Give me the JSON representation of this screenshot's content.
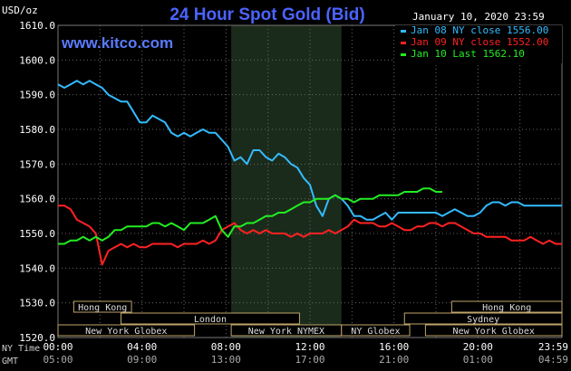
{
  "header": {
    "title": "24 Hour Spot Gold (Bid)",
    "unit": "USD/oz",
    "datetime": "January 10, 2020 23:59",
    "website": "www.kitco.com"
  },
  "legend": [
    {
      "label": "Jan 08 NY close 1556.00",
      "color": "#33bbff"
    },
    {
      "label": "Jan 09 NY close 1552.00",
      "color": "#ff2222"
    },
    {
      "label": "Jan 10 Last 1562.10",
      "color": "#22ee22"
    }
  ],
  "axis": {
    "ny_time_label": "NY Time",
    "gmt_label": "GMT",
    "ny_times": [
      "00:00",
      "04:00",
      "08:00",
      "12:00",
      "16:00",
      "20:00",
      "23:59"
    ],
    "gmt_times": [
      "05:00",
      "09:00",
      "13:00",
      "17:00",
      "21:00",
      "01:00",
      "04:59"
    ],
    "y_ticks": [
      "1610.0",
      "1600.0",
      "1590.0",
      "1580.0",
      "1570.0",
      "1560.0",
      "1550.0",
      "1540.0",
      "1530.0",
      "1520.0"
    ]
  },
  "markets": [
    {
      "label": "Hong Kong",
      "start": 0.75,
      "end": 3.5
    },
    {
      "label": "Hong Kong",
      "start": 18.75,
      "end": 24
    },
    {
      "label": "London",
      "start": 3.0,
      "end": 11.5
    },
    {
      "label": "Sydney",
      "start": 16.5,
      "end": 24
    },
    {
      "label": "New York Globex",
      "start": 0,
      "end": 6.5
    },
    {
      "label": "New York NYMEX",
      "start": 8.25,
      "end": 13.5
    },
    {
      "label": "NY Globex",
      "start": 13.5,
      "end": 16.75
    },
    {
      "label": "New York Globex",
      "start": 17.5,
      "end": 24
    }
  ],
  "chart_data": {
    "type": "line",
    "x_unit": "hours after 00:00 NY time",
    "y_unit": "USD/oz",
    "xlim": [
      0,
      24
    ],
    "ylim": [
      1520,
      1610
    ],
    "grid": true,
    "highlight_hours": [
      8.25,
      13.5
    ],
    "series": [
      {
        "name": "Jan 08 NY close 1556.00",
        "color": "#33bbff",
        "x": [
          0,
          0.3,
          0.6,
          0.9,
          1.2,
          1.5,
          1.8,
          2.1,
          2.4,
          2.7,
          3.0,
          3.3,
          3.6,
          3.9,
          4.2,
          4.5,
          4.8,
          5.1,
          5.4,
          5.7,
          6.0,
          6.3,
          6.6,
          6.9,
          7.2,
          7.5,
          7.8,
          8.1,
          8.4,
          8.7,
          9.0,
          9.3,
          9.6,
          9.9,
          10.2,
          10.5,
          10.8,
          11.1,
          11.4,
          11.7,
          12.0,
          12.3,
          12.6,
          12.9,
          13.2,
          13.5,
          13.8,
          14.1,
          14.4,
          14.7,
          15.0,
          15.3,
          15.6,
          15.9,
          16.2,
          16.5,
          16.8,
          17.1,
          17.4,
          17.7,
          18.0,
          18.3,
          18.6,
          18.9,
          19.2,
          19.5,
          19.8,
          20.1,
          20.4,
          20.7,
          21.0,
          21.3,
          21.6,
          21.9,
          22.2,
          22.5,
          22.8,
          23.1,
          23.4,
          23.7,
          24.0
        ],
        "y": [
          1593,
          1592,
          1593,
          1594,
          1593,
          1594,
          1593,
          1592,
          1590,
          1589,
          1588,
          1588,
          1585,
          1582,
          1582,
          1584,
          1583,
          1582,
          1579,
          1578,
          1579,
          1578,
          1579,
          1580,
          1579,
          1579,
          1577,
          1575,
          1571,
          1572,
          1570,
          1574,
          1574,
          1572,
          1571,
          1573,
          1572,
          1570,
          1569,
          1566,
          1564,
          1558,
          1555,
          1560,
          1561,
          1560,
          1558,
          1555,
          1555,
          1554,
          1554,
          1555,
          1556,
          1554,
          1556,
          1556,
          1556,
          1556,
          1556,
          1556,
          1556,
          1555,
          1556,
          1557,
          1556,
          1555,
          1555,
          1556,
          1558,
          1559,
          1559,
          1558,
          1559,
          1559,
          1558,
          1558,
          1558,
          1558,
          1558,
          1558,
          1558
        ]
      },
      {
        "name": "Jan 09 NY close 1552.00",
        "color": "#ff2222",
        "x": [
          0,
          0.3,
          0.6,
          0.9,
          1.2,
          1.5,
          1.8,
          2.1,
          2.4,
          2.7,
          3.0,
          3.3,
          3.6,
          3.9,
          4.2,
          4.5,
          4.8,
          5.1,
          5.4,
          5.7,
          6.0,
          6.3,
          6.6,
          6.9,
          7.2,
          7.5,
          7.8,
          8.1,
          8.4,
          8.7,
          9.0,
          9.3,
          9.6,
          9.9,
          10.2,
          10.5,
          10.8,
          11.1,
          11.4,
          11.7,
          12.0,
          12.3,
          12.6,
          12.9,
          13.2,
          13.5,
          13.8,
          14.1,
          14.4,
          14.7,
          15.0,
          15.3,
          15.6,
          15.9,
          16.2,
          16.5,
          16.8,
          17.1,
          17.4,
          17.7,
          18.0,
          18.3,
          18.6,
          18.9,
          19.2,
          19.5,
          19.8,
          20.1,
          20.4,
          20.7,
          21.0,
          21.3,
          21.6,
          21.9,
          22.2,
          22.5,
          22.8,
          23.1,
          23.4,
          23.7,
          24.0
        ],
        "y": [
          1558,
          1558,
          1557,
          1554,
          1553,
          1552,
          1550,
          1541,
          1545,
          1546,
          1547,
          1546,
          1547,
          1546,
          1546,
          1547,
          1547,
          1547,
          1547,
          1546,
          1547,
          1547,
          1547,
          1548,
          1547,
          1548,
          1551,
          1552,
          1553,
          1551,
          1550,
          1551,
          1550,
          1551,
          1550,
          1550,
          1550,
          1549,
          1550,
          1549,
          1550,
          1550,
          1550,
          1551,
          1550,
          1551,
          1552,
          1554,
          1553,
          1553,
          1553,
          1552,
          1552,
          1553,
          1552,
          1551,
          1551,
          1552,
          1552,
          1553,
          1553,
          1552,
          1553,
          1553,
          1552,
          1551,
          1550,
          1550,
          1549,
          1549,
          1549,
          1549,
          1548,
          1548,
          1548,
          1549,
          1548,
          1547,
          1548,
          1547,
          1547
        ]
      },
      {
        "name": "Jan 10 Last 1562.10",
        "color": "#22ee22",
        "x": [
          0,
          0.3,
          0.6,
          0.9,
          1.2,
          1.5,
          1.8,
          2.1,
          2.4,
          2.7,
          3.0,
          3.3,
          3.6,
          3.9,
          4.2,
          4.5,
          4.8,
          5.1,
          5.4,
          5.7,
          6.0,
          6.3,
          6.6,
          6.9,
          7.2,
          7.5,
          7.8,
          8.1,
          8.4,
          8.7,
          9.0,
          9.3,
          9.6,
          9.9,
          10.2,
          10.5,
          10.8,
          11.1,
          11.4,
          11.7,
          12.0,
          12.3,
          12.6,
          12.9,
          13.2,
          13.5,
          13.8,
          14.1,
          14.4,
          14.7,
          15.0,
          15.3,
          15.6,
          15.9,
          16.2,
          16.5,
          16.8,
          17.1,
          17.4,
          17.7,
          18.0,
          18.3
        ],
        "y": [
          1547,
          1547,
          1548,
          1548,
          1549,
          1548,
          1549,
          1548,
          1549,
          1551,
          1551,
          1552,
          1552,
          1552,
          1552,
          1553,
          1553,
          1552,
          1553,
          1552,
          1551,
          1553,
          1553,
          1553,
          1554,
          1555,
          1551,
          1549,
          1552,
          1552,
          1553,
          1553,
          1554,
          1555,
          1555,
          1556,
          1556,
          1557,
          1558,
          1559,
          1559,
          1560,
          1560,
          1560,
          1561,
          1560,
          1560,
          1559,
          1560,
          1560,
          1560,
          1561,
          1561,
          1561,
          1561,
          1562,
          1562,
          1562,
          1563,
          1563,
          1562,
          1562
        ]
      }
    ]
  }
}
